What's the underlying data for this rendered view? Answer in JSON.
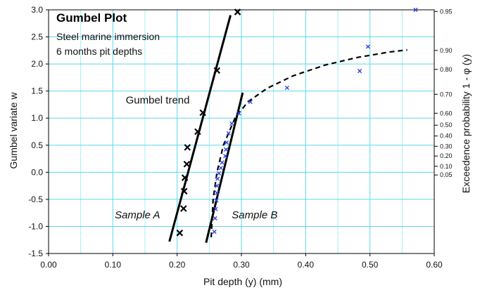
{
  "chart_data": {
    "type": "scatter",
    "title": "Gumbel Plot",
    "subtitle_lines": [
      "Steel marine immersion",
      "6 months pit depths"
    ],
    "xlabel": "Pit depth (y) (mm)",
    "ylabel": "Gumbel variate  w",
    "y2label": "Exceedence probability 1 - φ (y)",
    "xlim": [
      0.0,
      0.6
    ],
    "ylim": [
      -1.5,
      3.0
    ],
    "x_ticks": [
      "0.00",
      "0.10",
      "0.20",
      "0.30",
      "0.40",
      "0.50",
      "0.60"
    ],
    "x_tick_values": [
      0.0,
      0.1,
      0.2,
      0.3,
      0.4,
      0.5,
      0.6
    ],
    "y_ticks": [
      "-1.5",
      "-1.0",
      "-0.5",
      "0.0",
      "0.5",
      "1.0",
      "1.5",
      "2.0",
      "2.5",
      "3.0"
    ],
    "y_tick_values": [
      -1.5,
      -1.0,
      -0.5,
      0.0,
      0.5,
      1.0,
      1.5,
      2.0,
      2.5,
      3.0
    ],
    "right_ticks": [
      {
        "label": "0.95",
        "w": 2.97
      },
      {
        "label": "0.90",
        "w": 2.25
      },
      {
        "label": "0.80",
        "w": 1.9
      },
      {
        "label": "0.70",
        "w": 1.44
      },
      {
        "label": "0.60",
        "w": 1.09
      },
      {
        "label": "0.50",
        "w": 0.87
      },
      {
        "label": "0.40",
        "w": 0.67
      },
      {
        "label": "0.30",
        "w": 0.48
      },
      {
        "label": "0.20",
        "w": 0.3
      },
      {
        "label": "0.10",
        "w": 0.11
      },
      {
        "label": "0.05",
        "w": -0.05
      }
    ],
    "grid": true,
    "series": [
      {
        "name": "Sample A",
        "marker": "x",
        "color": "#000000",
        "points": [
          {
            "x": 0.294,
            "y": 2.96
          },
          {
            "x": 0.262,
            "y": 1.88
          },
          {
            "x": 0.24,
            "y": 1.1
          },
          {
            "x": 0.232,
            "y": 0.75
          },
          {
            "x": 0.216,
            "y": 0.46
          },
          {
            "x": 0.215,
            "y": 0.15
          },
          {
            "x": 0.212,
            "y": -0.1
          },
          {
            "x": 0.211,
            "y": -0.35
          },
          {
            "x": 0.21,
            "y": -0.67
          },
          {
            "x": 0.204,
            "y": -1.12
          }
        ]
      },
      {
        "name": "Sample B",
        "marker": "x",
        "color": "#3344dd",
        "points": [
          {
            "x": 0.571,
            "y": 3.0
          },
          {
            "x": 0.497,
            "y": 2.32
          },
          {
            "x": 0.484,
            "y": 1.87
          },
          {
            "x": 0.371,
            "y": 1.56
          },
          {
            "x": 0.314,
            "y": 1.3
          },
          {
            "x": 0.296,
            "y": 1.09
          },
          {
            "x": 0.285,
            "y": 0.9
          },
          {
            "x": 0.28,
            "y": 0.72
          },
          {
            "x": 0.277,
            "y": 0.55
          },
          {
            "x": 0.276,
            "y": 0.42
          },
          {
            "x": 0.275,
            "y": 0.3
          },
          {
            "x": 0.27,
            "y": 0.18
          },
          {
            "x": 0.268,
            "y": 0.08
          },
          {
            "x": 0.265,
            "y": -0.02
          },
          {
            "x": 0.263,
            "y": -0.12
          },
          {
            "x": 0.262,
            "y": -0.25
          },
          {
            "x": 0.262,
            "y": -0.38
          },
          {
            "x": 0.261,
            "y": -0.52
          },
          {
            "x": 0.26,
            "y": -0.68
          },
          {
            "x": 0.259,
            "y": -0.85
          },
          {
            "x": 0.258,
            "y": -1.1
          }
        ]
      }
    ],
    "lines": [
      {
        "name": "Gumbel trend A",
        "style": "solid",
        "color": "#000000",
        "points": [
          {
            "x": 0.188,
            "y": -1.28
          },
          {
            "x": 0.283,
            "y": 2.9
          }
        ]
      },
      {
        "name": "Gumbel trend B",
        "style": "solid",
        "color": "#000000",
        "points": [
          {
            "x": 0.245,
            "y": -1.3
          },
          {
            "x": 0.302,
            "y": 1.47
          }
        ]
      },
      {
        "name": "Fitted curve B",
        "style": "dashed",
        "color": "#000000",
        "points": [
          {
            "x": 0.253,
            "y": -1.2
          },
          {
            "x": 0.256,
            "y": -0.5
          },
          {
            "x": 0.262,
            "y": 0.0
          },
          {
            "x": 0.272,
            "y": 0.5
          },
          {
            "x": 0.29,
            "y": 1.0
          },
          {
            "x": 0.31,
            "y": 1.3
          },
          {
            "x": 0.34,
            "y": 1.55
          },
          {
            "x": 0.38,
            "y": 1.78
          },
          {
            "x": 0.43,
            "y": 1.98
          },
          {
            "x": 0.48,
            "y": 2.12
          },
          {
            "x": 0.53,
            "y": 2.22
          },
          {
            "x": 0.558,
            "y": 2.26
          }
        ]
      }
    ],
    "annotations": [
      {
        "text": "Gumbel trend",
        "style": "normal",
        "x": 0.12,
        "y": 1.27
      },
      {
        "text": "Sample A",
        "style": "italic",
        "x": 0.103,
        "y": -0.85
      },
      {
        "text": "Sample B",
        "style": "italic",
        "x": 0.285,
        "y": -0.85
      }
    ]
  }
}
